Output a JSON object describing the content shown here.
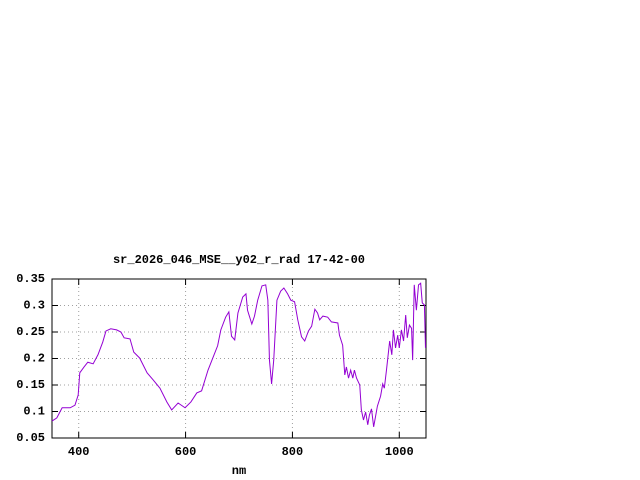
{
  "chart_data": {
    "type": "line",
    "title": "sr_2026_046_MSE__y02_r_rad 17-42-00",
    "x_label": "nm",
    "xlim": [
      350,
      1050
    ],
    "ylim": [
      0.05,
      0.35
    ],
    "xticks": [
      400,
      600,
      800,
      1000
    ],
    "yticks": [
      0.05,
      0.1,
      0.15,
      0.2,
      0.25,
      0.3,
      0.35
    ],
    "grid": true,
    "series": [
      {
        "color": "#9400d3",
        "x": [
          350,
          359,
          369,
          384,
          393,
          399,
          402,
          410,
          417,
          427,
          436,
          445,
          451,
          460,
          471,
          479,
          485,
          496,
          503,
          514,
          528,
          539,
          552,
          565,
          574,
          586,
          599,
          610,
          621,
          630,
          642,
          651,
          660,
          666,
          675,
          681,
          686,
          692,
          698,
          707,
          713,
          716,
          724,
          729,
          735,
          743,
          750,
          754,
          757,
          761,
          765,
          771,
          778,
          784,
          791,
          797,
          804,
          810,
          817,
          823,
          830,
          836,
          842,
          847,
          851,
          857,
          866,
          873,
          885,
          888,
          894,
          898,
          901,
          905,
          909,
          913,
          916,
          920,
          926,
          929,
          933,
          937,
          941,
          944,
          948,
          952,
          956,
          959,
          965,
          969,
          972,
          976,
          982,
          986,
          989,
          993,
          997,
          1000,
          1004,
          1008,
          1012,
          1015,
          1019,
          1023,
          1025,
          1028,
          1032,
          1036,
          1040,
          1043,
          1047,
          1049
        ],
        "values": [
          0.082,
          0.088,
          0.107,
          0.107,
          0.112,
          0.131,
          0.173,
          0.184,
          0.193,
          0.19,
          0.207,
          0.231,
          0.252,
          0.256,
          0.254,
          0.25,
          0.239,
          0.237,
          0.212,
          0.201,
          0.173,
          0.16,
          0.144,
          0.118,
          0.103,
          0.116,
          0.107,
          0.118,
          0.135,
          0.139,
          0.178,
          0.201,
          0.224,
          0.254,
          0.278,
          0.288,
          0.242,
          0.235,
          0.286,
          0.316,
          0.322,
          0.291,
          0.265,
          0.28,
          0.31,
          0.337,
          0.339,
          0.31,
          0.197,
          0.152,
          0.197,
          0.31,
          0.327,
          0.333,
          0.322,
          0.31,
          0.307,
          0.273,
          0.241,
          0.233,
          0.252,
          0.261,
          0.293,
          0.286,
          0.273,
          0.28,
          0.278,
          0.269,
          0.267,
          0.244,
          0.225,
          0.169,
          0.184,
          0.163,
          0.178,
          0.163,
          0.178,
          0.163,
          0.15,
          0.103,
          0.084,
          0.099,
          0.075,
          0.093,
          0.105,
          0.071,
          0.093,
          0.11,
          0.129,
          0.152,
          0.144,
          0.178,
          0.233,
          0.207,
          0.254,
          0.22,
          0.244,
          0.22,
          0.254,
          0.233,
          0.282,
          0.239,
          0.263,
          0.257,
          0.197,
          0.339,
          0.291,
          0.339,
          0.342,
          0.305,
          0.301,
          0.22
        ]
      }
    ]
  }
}
